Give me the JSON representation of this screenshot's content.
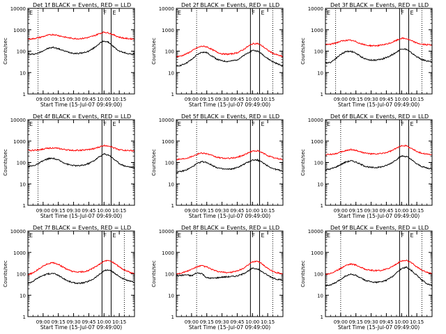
{
  "colors": {
    "events": "#000000",
    "lld": "#ff0000",
    "axis": "#000000"
  },
  "common": {
    "xlabel": "Start Time (15-Jul-07 09:49:00)",
    "ylabel": "Counts/sec",
    "x_ticks": [
      "09:00",
      "09:15",
      "09:30",
      "09:45",
      "10:00",
      "10:15"
    ],
    "x_tick_minutes": [
      0,
      15,
      30,
      45,
      60,
      75
    ],
    "y_ticks": [
      "1",
      "10",
      "100",
      "1000",
      "10000"
    ],
    "y_tick_values": [
      1,
      10,
      100,
      1000,
      10000
    ],
    "xlim_minutes": [
      -15,
      90
    ],
    "ylim": [
      1,
      10000
    ],
    "y_scale": "log",
    "marker_letters": [
      "E",
      "F",
      "E"
    ]
  },
  "chart_data": [
    {
      "type": "line",
      "title": "Det 1f BLACK = Events, RED = LLD",
      "vline_minutes": {
        "dotted": [
          -5
        ],
        "solid": [
          58,
          67
        ]
      },
      "series": [
        {
          "name": "Events",
          "x": [
            -15,
            -10,
            -5,
            0,
            5,
            10,
            15,
            20,
            25,
            30,
            35,
            40,
            45,
            50,
            55,
            60,
            65,
            70,
            75,
            80,
            85,
            90
          ],
          "y": [
            70,
            72,
            80,
            105,
            135,
            150,
            130,
            105,
            90,
            80,
            78,
            85,
            100,
            140,
            220,
            300,
            250,
            150,
            100,
            85,
            75,
            70
          ]
        },
        {
          "name": "LLD",
          "x": [
            -15,
            -10,
            -5,
            0,
            5,
            10,
            15,
            20,
            25,
            30,
            35,
            40,
            45,
            50,
            55,
            60,
            65,
            70,
            75,
            80,
            85,
            90
          ],
          "y": [
            360,
            380,
            420,
            480,
            560,
            600,
            540,
            470,
            420,
            390,
            380,
            400,
            440,
            520,
            650,
            780,
            700,
            560,
            450,
            400,
            380,
            370
          ]
        }
      ]
    },
    {
      "type": "line",
      "title": "Det 2f BLACK = Events, RED = LLD",
      "vline_minutes": {
        "dotted": [
          5,
          80
        ],
        "solid": [
          58,
          67
        ]
      },
      "series": [
        {
          "name": "Events",
          "x": [
            -15,
            -10,
            -5,
            0,
            5,
            10,
            15,
            20,
            25,
            30,
            35,
            40,
            45,
            50,
            55,
            60,
            65,
            70,
            75,
            80,
            85,
            90
          ],
          "y": [
            20,
            22,
            28,
            40,
            65,
            90,
            85,
            60,
            42,
            35,
            33,
            35,
            40,
            55,
            80,
            110,
            100,
            70,
            45,
            32,
            25,
            20
          ]
        },
        {
          "name": "LLD",
          "x": [
            -15,
            -10,
            -5,
            0,
            5,
            10,
            15,
            20,
            25,
            30,
            35,
            40,
            45,
            50,
            55,
            60,
            65,
            70,
            75,
            80,
            85,
            90
          ],
          "y": [
            55,
            60,
            75,
            100,
            140,
            170,
            160,
            120,
            90,
            75,
            72,
            75,
            85,
            110,
            160,
            220,
            230,
            170,
            110,
            80,
            65,
            55
          ]
        }
      ]
    },
    {
      "type": "line",
      "title": "Det 3f BLACK = Events, RED = LLD",
      "vline_minutes": {
        "dotted": [
          -5,
          80
        ],
        "solid": [
          58,
          67
        ]
      },
      "series": [
        {
          "name": "Events",
          "x": [
            -15,
            -10,
            -5,
            0,
            5,
            10,
            15,
            20,
            25,
            30,
            35,
            40,
            45,
            50,
            55,
            60,
            65,
            70,
            75,
            80,
            85,
            90
          ],
          "y": [
            28,
            30,
            45,
            70,
            95,
            100,
            80,
            55,
            42,
            38,
            38,
            42,
            50,
            65,
            90,
            130,
            120,
            80,
            55,
            40,
            35,
            32
          ]
        },
        {
          "name": "LLD",
          "x": [
            -15,
            -10,
            -5,
            0,
            5,
            10,
            15,
            20,
            25,
            30,
            35,
            40,
            45,
            50,
            55,
            60,
            65,
            70,
            75,
            80,
            85,
            90
          ],
          "y": [
            200,
            210,
            240,
            290,
            320,
            320,
            280,
            220,
            190,
            180,
            180,
            190,
            210,
            250,
            320,
            400,
            380,
            300,
            240,
            210,
            200,
            195
          ]
        }
      ]
    },
    {
      "type": "line",
      "title": "Det 4f BLACK = Events, RED = LLD",
      "vline_minutes": {
        "dotted": [
          -5
        ],
        "solid": [
          58,
          67
        ]
      },
      "series": [
        {
          "name": "Events",
          "x": [
            -15,
            -10,
            -5,
            0,
            5,
            10,
            15,
            20,
            25,
            30,
            35,
            40,
            45,
            50,
            55,
            60,
            65,
            70,
            75,
            80,
            85,
            90
          ],
          "y": [
            65,
            70,
            85,
            120,
            150,
            155,
            130,
            100,
            80,
            72,
            70,
            75,
            90,
            120,
            180,
            250,
            220,
            140,
            90,
            70,
            62,
            58
          ]
        },
        {
          "name": "LLD",
          "x": [
            -15,
            -10,
            -5,
            0,
            5,
            10,
            15,
            20,
            25,
            30,
            35,
            40,
            45,
            50,
            55,
            60,
            65,
            70,
            75,
            80,
            85,
            90
          ],
          "y": [
            360,
            370,
            390,
            420,
            470,
            480,
            450,
            410,
            380,
            370,
            370,
            380,
            400,
            440,
            520,
            620,
            600,
            480,
            400,
            370,
            360,
            350
          ]
        }
      ]
    },
    {
      "type": "line",
      "title": "Det 5f BLACK = Events, RED = LLD",
      "vline_minutes": {
        "dotted": [
          5
        ],
        "solid": [
          58,
          67
        ]
      },
      "series": [
        {
          "name": "Events",
          "x": [
            -15,
            -10,
            -5,
            0,
            5,
            10,
            15,
            20,
            25,
            30,
            35,
            40,
            45,
            50,
            55,
            60,
            65,
            70,
            75,
            80,
            85,
            90
          ],
          "y": [
            35,
            38,
            45,
            60,
            85,
            110,
            100,
            75,
            58,
            50,
            48,
            50,
            58,
            75,
            100,
            130,
            130,
            100,
            70,
            52,
            45,
            40
          ]
        },
        {
          "name": "LLD",
          "x": [
            -15,
            -10,
            -5,
            0,
            5,
            10,
            15,
            20,
            25,
            30,
            35,
            40,
            45,
            50,
            55,
            60,
            65,
            70,
            75,
            80,
            85,
            90
          ],
          "y": [
            140,
            145,
            160,
            190,
            240,
            280,
            260,
            210,
            175,
            160,
            155,
            160,
            175,
            210,
            270,
            340,
            350,
            280,
            210,
            170,
            150,
            140
          ]
        }
      ]
    },
    {
      "type": "line",
      "title": "Det 6f BLACK = Events, RED = LLD",
      "vline_minutes": {
        "dotted": [
          0
        ],
        "solid": [
          58,
          67
        ]
      },
      "series": [
        {
          "name": "Events",
          "x": [
            -15,
            -10,
            -5,
            0,
            5,
            10,
            15,
            20,
            25,
            30,
            35,
            40,
            45,
            50,
            55,
            60,
            65,
            70,
            75,
            80,
            85,
            90
          ],
          "y": [
            45,
            50,
            60,
            80,
            105,
            120,
            105,
            80,
            65,
            58,
            58,
            62,
            72,
            95,
            140,
            200,
            190,
            130,
            85,
            65,
            55,
            50
          ]
        },
        {
          "name": "LLD",
          "x": [
            -15,
            -10,
            -5,
            0,
            5,
            10,
            15,
            20,
            25,
            30,
            35,
            40,
            45,
            50,
            55,
            60,
            65,
            70,
            75,
            80,
            85,
            90
          ],
          "y": [
            230,
            240,
            260,
            300,
            360,
            400,
            370,
            310,
            270,
            250,
            250,
            260,
            290,
            350,
            460,
            620,
            600,
            440,
            330,
            270,
            245,
            235
          ]
        }
      ]
    },
    {
      "type": "line",
      "title": "Det 7f BLACK = Events, RED = LLD",
      "vline_minutes": {
        "dotted": [
          80
        ],
        "solid": [
          58,
          67
        ]
      },
      "series": [
        {
          "name": "Events",
          "x": [
            -15,
            -10,
            -5,
            0,
            5,
            10,
            15,
            20,
            25,
            30,
            35,
            40,
            45,
            50,
            55,
            60,
            65,
            70,
            75,
            80,
            85,
            90
          ],
          "y": [
            35,
            45,
            65,
            85,
            100,
            105,
            85,
            60,
            45,
            38,
            36,
            38,
            45,
            60,
            90,
            140,
            150,
            110,
            75,
            55,
            45,
            40
          ]
        },
        {
          "name": "LLD",
          "x": [
            -15,
            -10,
            -5,
            0,
            5,
            10,
            15,
            20,
            25,
            30,
            35,
            40,
            45,
            50,
            55,
            60,
            65,
            70,
            75,
            80,
            85,
            90
          ],
          "y": [
            90,
            110,
            160,
            230,
            300,
            330,
            280,
            200,
            150,
            125,
            120,
            125,
            145,
            190,
            270,
            390,
            420,
            320,
            210,
            150,
            120,
            100
          ]
        }
      ]
    },
    {
      "type": "line",
      "title": "Det 8f BLACK = Events, RED = LLD",
      "vline_minutes": {
        "dotted": [
          5,
          80
        ],
        "solid": [
          58,
          67
        ]
      },
      "series": [
        {
          "name": "Events",
          "x": [
            -15,
            -10,
            -5,
            0,
            5,
            10,
            15,
            20,
            25,
            30,
            35,
            40,
            45,
            50,
            55,
            60,
            65,
            70,
            75,
            80,
            85,
            90
          ],
          "y": [
            80,
            85,
            90,
            80,
            110,
            105,
            65,
            62,
            65,
            70,
            72,
            75,
            80,
            95,
            130,
            180,
            170,
            120,
            85,
            65,
            55,
            50
          ]
        },
        {
          "name": "LLD",
          "x": [
            -15,
            -10,
            -5,
            0,
            5,
            10,
            15,
            20,
            25,
            30,
            35,
            40,
            45,
            50,
            55,
            60,
            65,
            70,
            75,
            80,
            85,
            90
          ],
          "y": [
            100,
            110,
            130,
            160,
            210,
            240,
            210,
            160,
            130,
            120,
            115,
            120,
            135,
            170,
            240,
            360,
            400,
            280,
            180,
            130,
            110,
            100
          ]
        }
      ]
    },
    {
      "type": "line",
      "title": "Det 9f BLACK = Events, RED = LLD",
      "vline_minutes": {
        "dotted": [
          0,
          80
        ],
        "solid": [
          58,
          67
        ]
      },
      "series": [
        {
          "name": "Events",
          "x": [
            -15,
            -10,
            -5,
            0,
            5,
            10,
            15,
            20,
            25,
            30,
            35,
            40,
            45,
            50,
            55,
            60,
            65,
            70,
            75,
            80,
            85,
            90
          ],
          "y": [
            28,
            30,
            38,
            55,
            80,
            95,
            85,
            62,
            48,
            42,
            40,
            42,
            50,
            70,
            110,
            180,
            200,
            140,
            85,
            50,
            35,
            28
          ]
        },
        {
          "name": "LLD",
          "x": [
            -15,
            -10,
            -5,
            0,
            5,
            10,
            15,
            20,
            25,
            30,
            35,
            40,
            45,
            50,
            55,
            60,
            65,
            70,
            75,
            80,
            85,
            90
          ],
          "y": [
            95,
            105,
            130,
            180,
            250,
            290,
            260,
            200,
            160,
            145,
            140,
            145,
            165,
            210,
            290,
            400,
            420,
            320,
            210,
            150,
            120,
            100
          ]
        }
      ]
    }
  ]
}
